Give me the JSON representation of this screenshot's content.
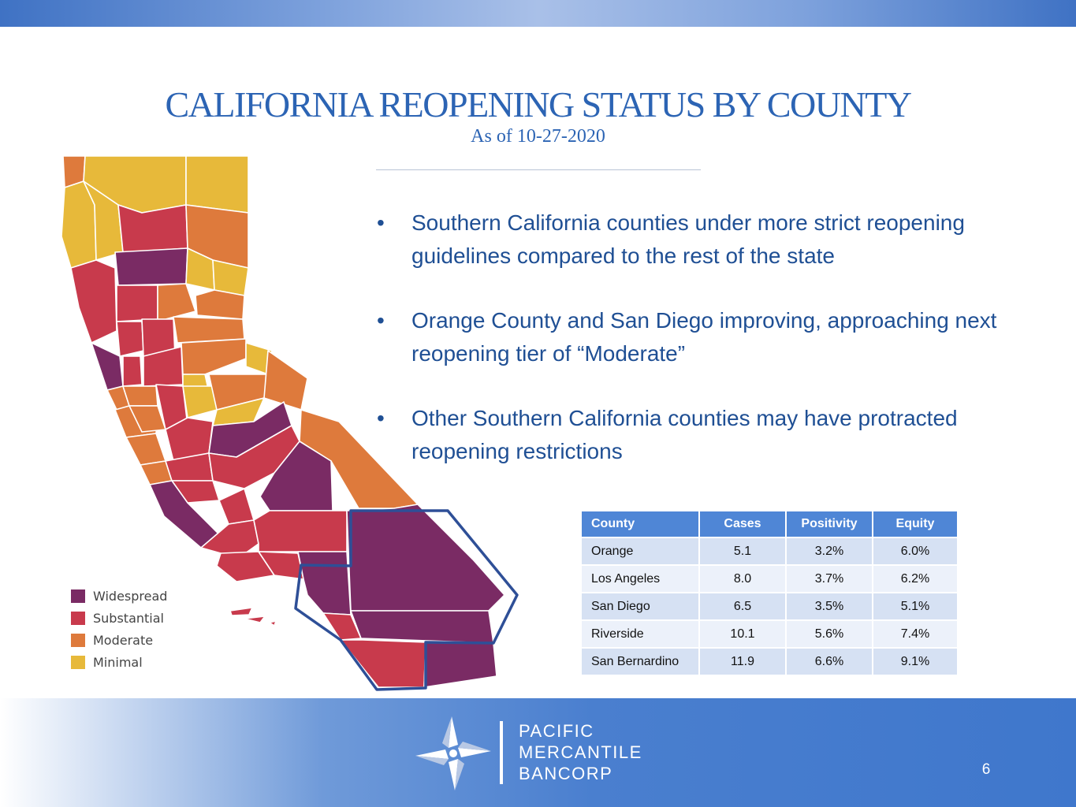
{
  "slide": {
    "title": "CALIFORNIA REOPENING STATUS BY COUNTY",
    "subtitle": "As of 10-27-2020",
    "page_number": "6"
  },
  "bullets": [
    "Southern California counties under more strict reopening guidelines compared to the rest of the state",
    "Orange County and San Diego improving, approaching next reopening tier of “Moderate”",
    "Other Southern California counties may have protracted reopening restrictions"
  ],
  "legend": [
    {
      "label": "Widespread",
      "color": "#7a2b64"
    },
    {
      "label": "Substantial",
      "color": "#c83a4c"
    },
    {
      "label": "Moderate",
      "color": "#de7a3c"
    },
    {
      "label": "Minimal",
      "color": "#e7b93a"
    }
  ],
  "table": {
    "headers": [
      "County",
      "Cases",
      "Positivity",
      "Equity"
    ],
    "rows": [
      [
        "Orange",
        "5.1",
        "3.2%",
        "6.0%"
      ],
      [
        "Los Angeles",
        "8.0",
        "3.7%",
        "6.2%"
      ],
      [
        "San Diego",
        "6.5",
        "3.5%",
        "5.1%"
      ],
      [
        "Riverside",
        "10.1",
        "5.6%",
        "7.4%"
      ],
      [
        "San Bernardino",
        "11.9",
        "6.6%",
        "9.1%"
      ]
    ]
  },
  "logo": {
    "line1": "PACIFIC",
    "line2": "MERCANTILE",
    "line3": "BANCORP"
  },
  "colors": {
    "title": "#2c64b4",
    "bullet_text": "#1f4f94",
    "table_header": "#4f86d6",
    "highlight_outline": "#2e4f97"
  }
}
